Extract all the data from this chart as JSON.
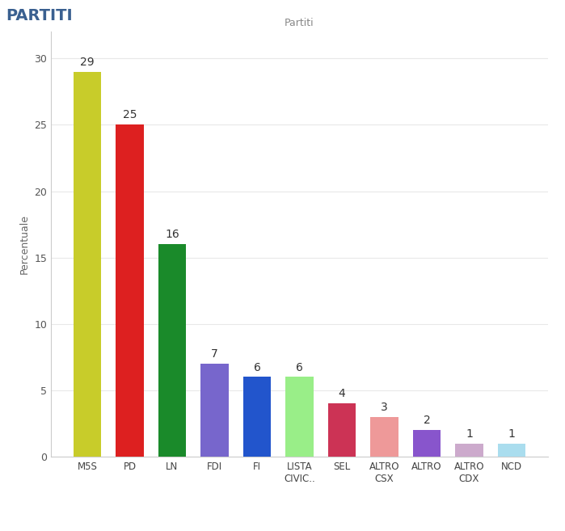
{
  "title": "Partiti",
  "suptitle": "PARTITI",
  "ylabel": "Percentuale",
  "categories": [
    "M5S",
    "PD",
    "LN",
    "FDI",
    "FI",
    "LISTA\nCIVIC..",
    "SEL",
    "ALTRO\nCSX",
    "ALTRO",
    "ALTRO\nCDX",
    "NCD"
  ],
  "values": [
    29,
    25,
    16,
    7,
    6,
    6,
    4,
    3,
    2,
    1,
    1
  ],
  "bar_colors": [
    "#c8cc2a",
    "#dd2020",
    "#1a8a2a",
    "#7766cc",
    "#2255cc",
    "#99ee88",
    "#cc3355",
    "#ee9999",
    "#8855cc",
    "#ccaacc",
    "#aaddee"
  ],
  "ylim": [
    0,
    32
  ],
  "yticks": [
    0,
    5,
    10,
    15,
    20,
    25,
    30
  ],
  "label_fontsize": 9,
  "value_fontsize": 10,
  "title_fontsize": 9,
  "suptitle_fontsize": 14,
  "background_color": "#ffffff",
  "axes_background": "#ffffff",
  "grid_color": "#e8e8e8",
  "spine_color": "#cccccc"
}
